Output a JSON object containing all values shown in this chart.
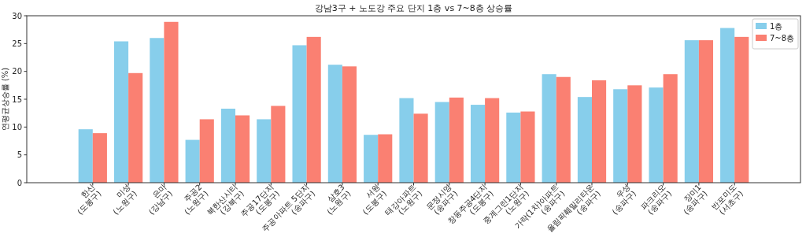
{
  "chart_data": {
    "type": "bar",
    "title": "강남3구 + 노도강 주요 단지 1층 vs 7~8층 상승률",
    "ylabel": "연평균상승률 (%)",
    "categories": [
      "한신\n(도봉구)",
      "미성\n(노원구)",
      "은마\n(강남구)",
      "주공2\n(노원구)",
      "북한산시티\n(강북구)",
      "주공17단지\n(도봉구)",
      "주공아파트 5단지\n(송파구)",
      "삼호3\n(노원구)",
      "서원\n(도봉구)",
      "태강아파트\n(노원구)",
      "문정시영\n(송파구)",
      "창동주공4단지\n(도봉구)",
      "중계그린1단지\n(노원구)",
      "가락(1차)아파트\n(송파구)",
      "올림픽훼밀리타운\n(송파구)",
      "우성\n(송파구)",
      "파크리오\n(송파구)",
      "장미1\n(송파구)",
      "반포미도\n(서초구)"
    ],
    "series": [
      {
        "name": "1층",
        "color": "#87ceeb",
        "values": [
          9.6,
          25.4,
          26.0,
          7.7,
          13.3,
          11.4,
          24.7,
          21.2,
          8.6,
          15.2,
          14.5,
          14.0,
          12.6,
          19.5,
          15.4,
          16.8,
          17.1,
          25.6,
          27.8
        ]
      },
      {
        "name": "7~8층",
        "color": "#fa8072",
        "values": [
          8.9,
          19.7,
          28.9,
          11.4,
          12.1,
          13.8,
          26.2,
          20.9,
          8.7,
          12.4,
          15.3,
          15.2,
          12.8,
          19.0,
          18.4,
          17.5,
          19.5,
          25.6,
          26.2
        ]
      }
    ],
    "ylim": [
      0,
      30
    ],
    "yticks": [
      0,
      5,
      10,
      15,
      20,
      25,
      30
    ],
    "legend": "top right"
  }
}
